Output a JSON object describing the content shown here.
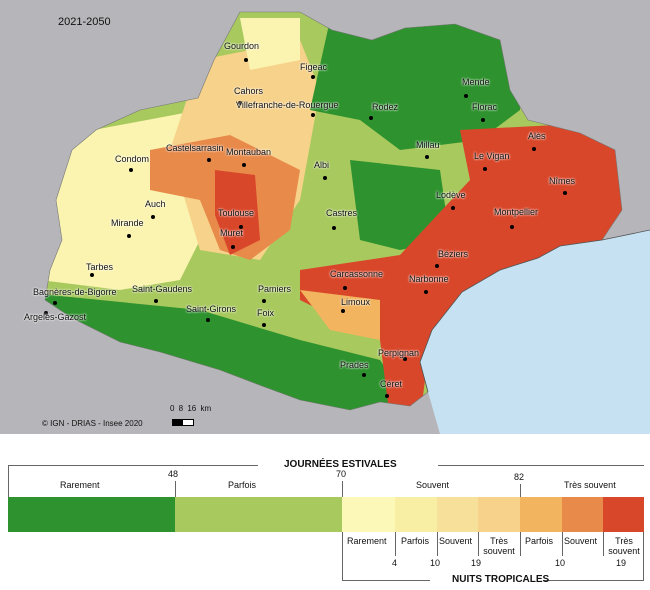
{
  "period": "2021-2050",
  "credit": "© IGN - DRIAS - Insee 2020",
  "scale": {
    "ticks": "0 8 16",
    "unit": "km"
  },
  "colors": {
    "background": "#b6b5b9",
    "sea": "#c6e2f2",
    "rarement": "#2e922e",
    "parfois": "#a8c95d",
    "nt_rarement": "#fcf8b8",
    "nt_parfois": "#f8efa4",
    "nt_souvent": "#f7e19a",
    "nt_tres_souvent": "#f6d28a",
    "h_parfois": "#f2b45f",
    "h_souvent": "#e88a4a",
    "h_tres_souvent": "#d9472a"
  },
  "cities": [
    {
      "name": "Gourdon"
    },
    {
      "name": "Figeac"
    },
    {
      "name": "Cahors"
    },
    {
      "name": "Villefranche-de-Rouergue"
    },
    {
      "name": "Rodez"
    },
    {
      "name": "Mende"
    },
    {
      "name": "Florac"
    },
    {
      "name": "Alès"
    },
    {
      "name": "Millau"
    },
    {
      "name": "Le Vigan"
    },
    {
      "name": "Nîmes"
    },
    {
      "name": "Condom"
    },
    {
      "name": "Castelsarrasin"
    },
    {
      "name": "Montauban"
    },
    {
      "name": "Albi"
    },
    {
      "name": "Lodève"
    },
    {
      "name": "Montpellier"
    },
    {
      "name": "Auch"
    },
    {
      "name": "Toulouse"
    },
    {
      "name": "Castres"
    },
    {
      "name": "Mirande"
    },
    {
      "name": "Muret"
    },
    {
      "name": "Béziers"
    },
    {
      "name": "Tarbes"
    },
    {
      "name": "Carcassonne"
    },
    {
      "name": "Narbonne"
    },
    {
      "name": "Bagnères-de-Bigorre"
    },
    {
      "name": "Saint-Gaudens"
    },
    {
      "name": "Pamiers"
    },
    {
      "name": "Limoux"
    },
    {
      "name": "Saint-Girons"
    },
    {
      "name": "Foix"
    },
    {
      "name": "Argelès-Gazost"
    },
    {
      "name": "Perpignan"
    },
    {
      "name": "Prades"
    },
    {
      "name": "Céret"
    }
  ],
  "legend": {
    "top_title": "JOURNÉES ESTIVALES",
    "bottom_title": "NUITS TROPICALES",
    "top_classes": [
      "Rarement",
      "Parfois",
      "Souvent",
      "Très souvent"
    ],
    "top_thresholds": [
      "48",
      "70",
      "82"
    ],
    "bottom_classes": [
      "Rarement",
      "Parfois",
      "Souvent",
      "Très souvent",
      "Parfois",
      "Souvent",
      "Très souvent"
    ],
    "bottom_thresholds": [
      "4",
      "10",
      "19",
      "10",
      "19"
    ]
  }
}
